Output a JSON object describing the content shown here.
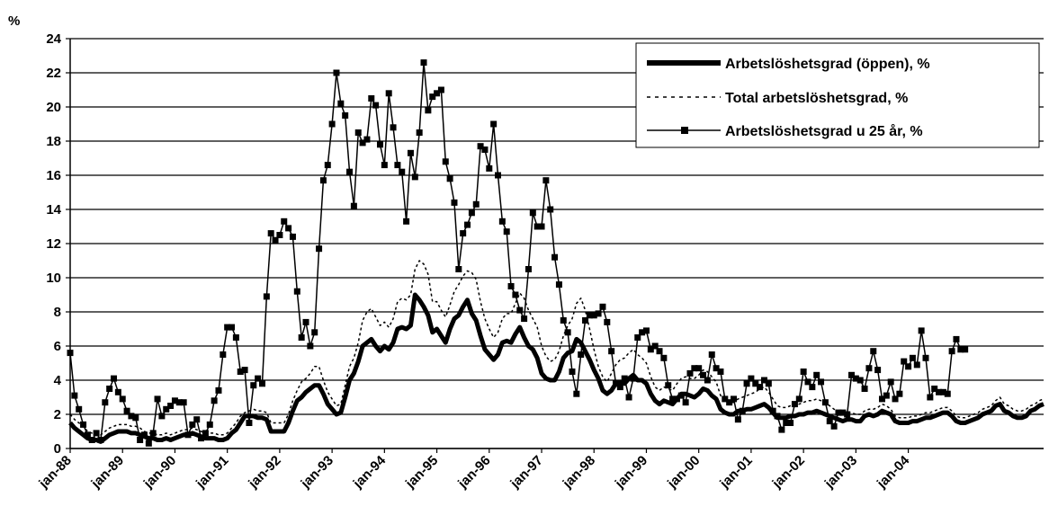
{
  "chart_data": {
    "type": "line",
    "ylabel": "%",
    "ylim": [
      0,
      24
    ],
    "yticks": [
      "0",
      "2",
      "4",
      "6",
      "8",
      "10",
      "12",
      "14",
      "16",
      "18",
      "20",
      "22",
      "24"
    ],
    "xticks": [
      "jan-88",
      "jan-89",
      "jan-90",
      "jan-91",
      "jan-92",
      "jan-93",
      "jan-94",
      "jan-95",
      "jan-96",
      "jan-97",
      "jan-98",
      "jan-99",
      "jan-00",
      "jan-01",
      "jan-02",
      "jan-03",
      "jan-04"
    ],
    "x_start": "1988-01",
    "grid": true,
    "legend_position": "top-right",
    "series": [
      {
        "name": "Arbetslöshetsgrad (öppen), %",
        "style": "thick",
        "color": "#000000",
        "values": [
          1.5,
          1.2,
          1.0,
          0.8,
          0.6,
          0.5,
          0.5,
          0.4,
          0.6,
          0.8,
          0.9,
          1.0,
          1.0,
          1.0,
          0.9,
          0.9,
          0.8,
          0.7,
          0.6,
          0.6,
          0.5,
          0.5,
          0.6,
          0.5,
          0.6,
          0.7,
          0.8,
          0.8,
          0.9,
          0.8,
          0.7,
          0.6,
          0.6,
          0.6,
          0.5,
          0.5,
          0.6,
          0.9,
          1.1,
          1.5,
          1.9,
          1.9,
          1.9,
          1.8,
          1.8,
          1.7,
          1.0,
          1.0,
          1.0,
          1.0,
          1.5,
          2.2,
          2.8,
          3.0,
          3.3,
          3.5,
          3.7,
          3.7,
          3.2,
          2.6,
          2.3,
          2.0,
          2.1,
          3.0,
          4.0,
          4.4,
          5.1,
          6.0,
          6.2,
          6.4,
          6.0,
          5.7,
          6.0,
          5.8,
          6.2,
          7.0,
          7.1,
          7.0,
          7.2,
          9.0,
          8.7,
          8.3,
          7.8,
          6.8,
          7.0,
          6.6,
          6.2,
          7.0,
          7.6,
          7.8,
          8.3,
          8.7,
          7.9,
          7.5,
          6.6,
          5.8,
          5.5,
          5.2,
          5.5,
          6.2,
          6.3,
          6.2,
          6.7,
          7.1,
          6.5,
          6.0,
          5.8,
          5.3,
          4.4,
          4.1,
          4.0,
          4.0,
          4.5,
          5.3,
          5.6,
          5.7,
          6.4,
          6.2,
          5.7,
          5.2,
          4.6,
          4.1,
          3.4,
          3.2,
          3.4,
          3.8,
          3.9,
          3.8,
          4.1,
          4.3,
          4.0,
          4.0,
          3.8,
          3.2,
          2.8,
          2.6,
          2.8,
          2.7,
          2.6,
          2.9,
          3.2,
          3.2,
          3.1,
          3.0,
          3.2,
          3.5,
          3.4,
          3.1,
          2.9,
          2.3,
          2.1,
          2.0,
          2.0,
          2.2,
          2.2,
          2.3,
          2.3,
          2.4,
          2.5,
          2.6,
          2.4,
          2.1,
          1.8,
          1.8,
          1.8,
          1.9,
          1.9,
          2.0,
          2.0,
          2.1,
          2.1,
          2.2,
          2.1,
          2.0,
          1.9,
          1.8,
          1.7,
          1.6,
          1.7,
          1.7,
          1.6,
          1.6,
          1.9,
          2.0,
          1.9,
          2.0,
          2.2,
          2.1,
          2.0,
          1.6,
          1.5,
          1.5,
          1.5,
          1.6,
          1.6,
          1.7,
          1.8,
          1.8,
          1.9,
          2.0,
          2.1,
          2.1,
          1.9,
          1.6,
          1.5,
          1.5,
          1.6,
          1.7,
          1.8,
          2.0,
          2.1,
          2.2,
          2.5,
          2.6,
          2.2,
          2.1,
          1.9,
          1.8,
          1.8,
          1.9,
          2.2,
          2.3,
          2.5,
          2.6
        ]
      },
      {
        "name": "Total arbetslöshetsgrad, %",
        "style": "dotted",
        "color": "#000000",
        "values": [
          2.0,
          1.7,
          1.5,
          1.3,
          1.0,
          0.9,
          0.9,
          0.8,
          1.0,
          1.2,
          1.3,
          1.4,
          1.4,
          1.4,
          1.3,
          1.3,
          1.2,
          1.0,
          0.9,
          0.9,
          0.8,
          0.8,
          0.9,
          0.8,
          0.9,
          1.0,
          1.1,
          1.1,
          1.2,
          1.1,
          1.0,
          0.9,
          0.9,
          0.9,
          0.8,
          0.8,
          0.9,
          1.2,
          1.5,
          1.9,
          2.1,
          2.2,
          2.3,
          2.2,
          2.2,
          2.1,
          1.5,
          1.5,
          1.5,
          1.5,
          2.0,
          2.8,
          3.4,
          3.9,
          4.1,
          4.4,
          4.8,
          4.8,
          4.0,
          3.3,
          2.9,
          2.5,
          2.6,
          3.7,
          4.8,
          5.3,
          6.2,
          7.5,
          8.0,
          8.2,
          7.7,
          7.2,
          7.4,
          7.1,
          7.6,
          8.6,
          8.8,
          8.7,
          9.0,
          10.5,
          11.0,
          10.8,
          10.2,
          8.6,
          8.6,
          8.1,
          7.7,
          8.4,
          9.2,
          9.6,
          10.1,
          10.4,
          10.3,
          9.9,
          8.6,
          7.6,
          7.0,
          6.5,
          6.8,
          7.6,
          7.9,
          7.9,
          8.5,
          9.1,
          8.8,
          8.1,
          7.6,
          7.1,
          6.0,
          5.4,
          5.1,
          5.2,
          5.7,
          6.6,
          7.2,
          7.6,
          8.5,
          8.8,
          8.1,
          7.0,
          5.8,
          4.8,
          4.2,
          3.9,
          4.4,
          4.9,
          5.2,
          5.3,
          5.6,
          5.8,
          5.5,
          5.3,
          5.0,
          4.2,
          3.6,
          3.4,
          3.6,
          3.5,
          3.4,
          3.8,
          4.1,
          4.2,
          4.1,
          4.1,
          4.3,
          4.6,
          4.5,
          4.2,
          3.9,
          3.1,
          2.8,
          2.7,
          2.7,
          2.9,
          3.0,
          3.1,
          3.2,
          3.3,
          3.5,
          3.6,
          3.3,
          2.9,
          2.5,
          2.4,
          2.4,
          2.5,
          2.5,
          2.6,
          2.7,
          2.8,
          2.8,
          2.9,
          2.8,
          2.7,
          2.5,
          2.3,
          2.2,
          2.1,
          2.1,
          2.1,
          2.0,
          2.0,
          2.2,
          2.3,
          2.3,
          2.4,
          2.6,
          2.5,
          2.3,
          1.9,
          1.8,
          1.8,
          1.8,
          1.9,
          1.9,
          2.0,
          2.1,
          2.1,
          2.2,
          2.3,
          2.4,
          2.4,
          2.2,
          1.9,
          1.8,
          1.8,
          1.9,
          2.0,
          2.1,
          2.3,
          2.4,
          2.5,
          2.8,
          3.0,
          2.6,
          2.5,
          2.3,
          2.2,
          2.2,
          2.3,
          2.5,
          2.6,
          2.8,
          2.9
        ]
      },
      {
        "name": "Arbetslöshetsgrad u 25 år, %",
        "style": "markers",
        "color": "#000000",
        "values": [
          5.6,
          3.1,
          2.3,
          1.4,
          0.8,
          0.5,
          0.9,
          0.5,
          2.7,
          3.5,
          4.1,
          3.3,
          2.9,
          2.2,
          1.9,
          1.8,
          0.5,
          0.8,
          0.3,
          0.9,
          2.9,
          1.9,
          2.3,
          2.5,
          2.8,
          2.7,
          2.7,
          0.8,
          1.4,
          1.7,
          0.6,
          0.9,
          1.4,
          2.8,
          3.4,
          5.5,
          7.1,
          7.1,
          6.5,
          4.5,
          4.6,
          1.5,
          3.7,
          4.1,
          3.8,
          8.9,
          12.6,
          12.2,
          12.5,
          13.3,
          12.9,
          12.4,
          9.2,
          6.5,
          7.4,
          6.0,
          6.8,
          11.7,
          15.7,
          16.6,
          19.0,
          22.0,
          20.2,
          19.5,
          16.2,
          14.2,
          18.5,
          17.9,
          18.1,
          20.5,
          20.1,
          17.8,
          16.6,
          20.8,
          18.8,
          16.6,
          16.2,
          13.3,
          17.3,
          15.9,
          18.5,
          22.6,
          19.8,
          20.6,
          20.8,
          21.0,
          16.8,
          15.8,
          14.4,
          10.5,
          12.6,
          13.1,
          13.8,
          14.3,
          17.7,
          17.5,
          16.4,
          19.0,
          16.0,
          13.3,
          12.7,
          9.5,
          9.0,
          8.1,
          7.6,
          10.5,
          13.8,
          13.0,
          13.0,
          15.7,
          14.0,
          11.2,
          9.6,
          7.5,
          6.8,
          4.5,
          3.2,
          5.5,
          7.5,
          7.8,
          7.8,
          7.9,
          8.3,
          7.4,
          5.7,
          3.8,
          3.6,
          4.1,
          3.0,
          4.1,
          6.5,
          6.8,
          6.9,
          5.8,
          6.0,
          5.7,
          5.3,
          3.7,
          2.9,
          2.9,
          3.1,
          2.7,
          4.4,
          4.7,
          4.7,
          4.3,
          4.0,
          5.5,
          4.7,
          4.5,
          2.9,
          2.7,
          2.9,
          1.7,
          2.2,
          3.8,
          4.1,
          3.8,
          3.6,
          4.0,
          3.8,
          2.2,
          1.9,
          1.1,
          1.5,
          1.5,
          2.6,
          2.9,
          4.5,
          3.9,
          3.6,
          4.3,
          3.9,
          2.7,
          1.6,
          1.3,
          2.1,
          2.1,
          2.0,
          4.3,
          4.1,
          4.0,
          3.5,
          4.7,
          5.7,
          4.6,
          2.9,
          3.1,
          3.9,
          2.9,
          3.2,
          5.1,
          4.8,
          5.3,
          4.9,
          6.9,
          5.3,
          3.0,
          3.5,
          3.3,
          3.3,
          3.2,
          5.7,
          6.4,
          5.8,
          5.8
        ]
      }
    ]
  }
}
